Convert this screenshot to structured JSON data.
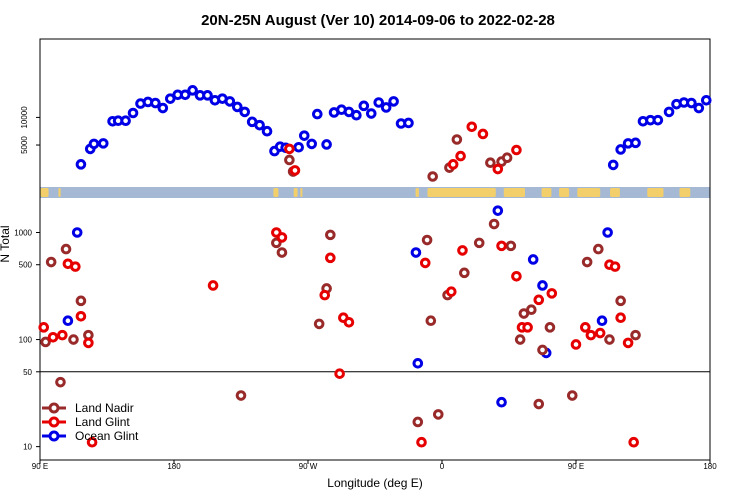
{
  "chart_data": {
    "type": "scatter",
    "title": "20N-25N August (Ver 10)   2014-09-06 to 2022-02-28",
    "xlabel": "Longitude (deg E)",
    "ylabel": "N Total",
    "xlim": [
      0,
      360
    ],
    "x_ticks": [
      {
        "x": 0,
        "label": "90 E"
      },
      {
        "x": 72,
        "label": "180"
      },
      {
        "x": 144,
        "label": "90 W"
      },
      {
        "x": 216,
        "label": "0"
      },
      {
        "x": 288,
        "label": "90 E"
      },
      {
        "x": 360,
        "label": "180"
      }
    ],
    "upper_panel": {
      "scale": "linear",
      "ylim": [
        -2600,
        24200
      ],
      "ticks": [
        5000,
        10000
      ],
      "tick_labels": [
        "5000",
        "10000"
      ]
    },
    "lower_panel": {
      "scale": "log",
      "ylim": [
        7.5,
        2100
      ],
      "ticks": [
        10,
        50,
        100,
        500,
        1000
      ],
      "tick_labels": [
        "10",
        "50",
        "100",
        "500",
        "1000"
      ],
      "reference_line": 50
    },
    "land_band": {
      "description": "land/ocean mask strip",
      "ocean_color": "#a6b9d4",
      "land_color": "#f3cf6b"
    },
    "legend": {
      "position": "bottom-left",
      "entries": [
        "Land Nadir",
        "Land Glint",
        "Ocean Glint"
      ]
    },
    "series": [
      {
        "name": "Ocean Glint",
        "panel": "upper",
        "color": "#0000e6",
        "points": [
          [
            22,
            1500
          ],
          [
            27,
            4300
          ],
          [
            29,
            5200
          ],
          [
            34,
            5300
          ],
          [
            39,
            9300
          ],
          [
            42,
            9400
          ],
          [
            46,
            9400
          ],
          [
            50,
            10800
          ],
          [
            54,
            12500
          ],
          [
            58,
            12800
          ],
          [
            62,
            12600
          ],
          [
            66,
            11700
          ],
          [
            70,
            13400
          ],
          [
            74,
            14100
          ],
          [
            78,
            14100
          ],
          [
            82,
            14900
          ],
          [
            86,
            14000
          ],
          [
            90,
            14000
          ],
          [
            94,
            13100
          ],
          [
            98,
            13400
          ],
          [
            102,
            12900
          ],
          [
            106,
            11900
          ],
          [
            110,
            11000
          ],
          [
            114,
            9200
          ],
          [
            118,
            8600
          ],
          [
            122,
            7500
          ],
          [
            126,
            3900
          ],
          [
            129,
            4700
          ],
          [
            132,
            4500
          ],
          [
            139,
            4600
          ],
          [
            142,
            6700
          ],
          [
            146,
            5200
          ],
          [
            149,
            10600
          ],
          [
            154,
            5100
          ],
          [
            158,
            10900
          ],
          [
            162,
            11400
          ],
          [
            166,
            11000
          ],
          [
            170,
            10400
          ],
          [
            174,
            12100
          ],
          [
            178,
            10700
          ],
          [
            182,
            12700
          ],
          [
            186,
            11800
          ],
          [
            190,
            12900
          ],
          [
            194,
            8900
          ],
          [
            198,
            9000
          ],
          [
            308,
            1400
          ],
          [
            312,
            4200
          ],
          [
            316,
            5300
          ],
          [
            320,
            5400
          ],
          [
            324,
            9300
          ],
          [
            328,
            9500
          ],
          [
            332,
            9500
          ],
          [
            338,
            11000
          ],
          [
            342,
            12400
          ],
          [
            346,
            12700
          ],
          [
            350,
            12600
          ],
          [
            354,
            11700
          ],
          [
            358,
            13100
          ]
        ]
      },
      {
        "name": "Ocean Glint",
        "panel": "lower",
        "color": "#0000e6",
        "points": [
          [
            20,
            1000
          ],
          [
            15,
            150
          ],
          [
            202,
            650
          ],
          [
            203,
            60
          ],
          [
            246,
            1600
          ],
          [
            248,
            26
          ],
          [
            265,
            560
          ],
          [
            270,
            320
          ],
          [
            272,
            75
          ],
          [
            302,
            150
          ],
          [
            305,
            1000
          ]
        ]
      },
      {
        "name": "Land Nadir",
        "panel": "upper",
        "color": "#992a2a",
        "points": [
          [
            134,
            2300
          ],
          [
            136,
            200
          ],
          [
            211,
            -700
          ],
          [
            220,
            900
          ],
          [
            224,
            6000
          ],
          [
            242,
            1800
          ],
          [
            248,
            2000
          ],
          [
            251,
            2700
          ]
        ]
      },
      {
        "name": "Land Nadir",
        "panel": "lower",
        "color": "#992a2a",
        "points": [
          [
            3,
            95
          ],
          [
            6,
            530
          ],
          [
            11,
            40
          ],
          [
            14,
            700
          ],
          [
            18,
            100
          ],
          [
            22,
            230
          ],
          [
            26,
            110
          ],
          [
            108,
            30
          ],
          [
            127,
            800
          ],
          [
            130,
            650
          ],
          [
            150,
            140
          ],
          [
            154,
            300
          ],
          [
            156,
            950
          ],
          [
            203,
            17
          ],
          [
            208,
            850
          ],
          [
            210,
            150
          ],
          [
            214,
            20
          ],
          [
            219,
            260
          ],
          [
            228,
            420
          ],
          [
            236,
            800
          ],
          [
            244,
            1200
          ],
          [
            253,
            750
          ],
          [
            258,
            100
          ],
          [
            260,
            175
          ],
          [
            264,
            190
          ],
          [
            268,
            25
          ],
          [
            270,
            80
          ],
          [
            274,
            130
          ],
          [
            286,
            30
          ],
          [
            294,
            530
          ],
          [
            300,
            700
          ],
          [
            306,
            100
          ],
          [
            312,
            230
          ],
          [
            320,
            110
          ]
        ]
      },
      {
        "name": "Land Glint",
        "panel": "upper",
        "color": "#e60000",
        "points": [
          [
            134,
            4300
          ],
          [
            137,
            400
          ],
          [
            222,
            1500
          ],
          [
            226,
            3000
          ],
          [
            232,
            8300
          ],
          [
            238,
            7000
          ],
          [
            246,
            650
          ],
          [
            256,
            4100
          ]
        ]
      },
      {
        "name": "Land Glint",
        "panel": "lower",
        "color": "#e60000",
        "points": [
          [
            2,
            130
          ],
          [
            7,
            105
          ],
          [
            12,
            110
          ],
          [
            15,
            510
          ],
          [
            19,
            480
          ],
          [
            22,
            165
          ],
          [
            26,
            93
          ],
          [
            28,
            11
          ],
          [
            93,
            320
          ],
          [
            127,
            1000
          ],
          [
            130,
            900
          ],
          [
            153,
            260
          ],
          [
            156,
            580
          ],
          [
            161,
            48
          ],
          [
            163,
            160
          ],
          [
            166,
            145
          ],
          [
            205,
            11
          ],
          [
            207,
            520
          ],
          [
            221,
            280
          ],
          [
            227,
            680
          ],
          [
            248,
            750
          ],
          [
            256,
            390
          ],
          [
            259,
            130
          ],
          [
            262,
            130
          ],
          [
            268,
            235
          ],
          [
            275,
            270
          ],
          [
            288,
            90
          ],
          [
            293,
            130
          ],
          [
            296,
            110
          ],
          [
            301,
            115
          ],
          [
            306,
            500
          ],
          [
            309,
            480
          ],
          [
            312,
            160
          ],
          [
            316,
            93
          ],
          [
            319,
            11
          ]
        ]
      }
    ]
  }
}
